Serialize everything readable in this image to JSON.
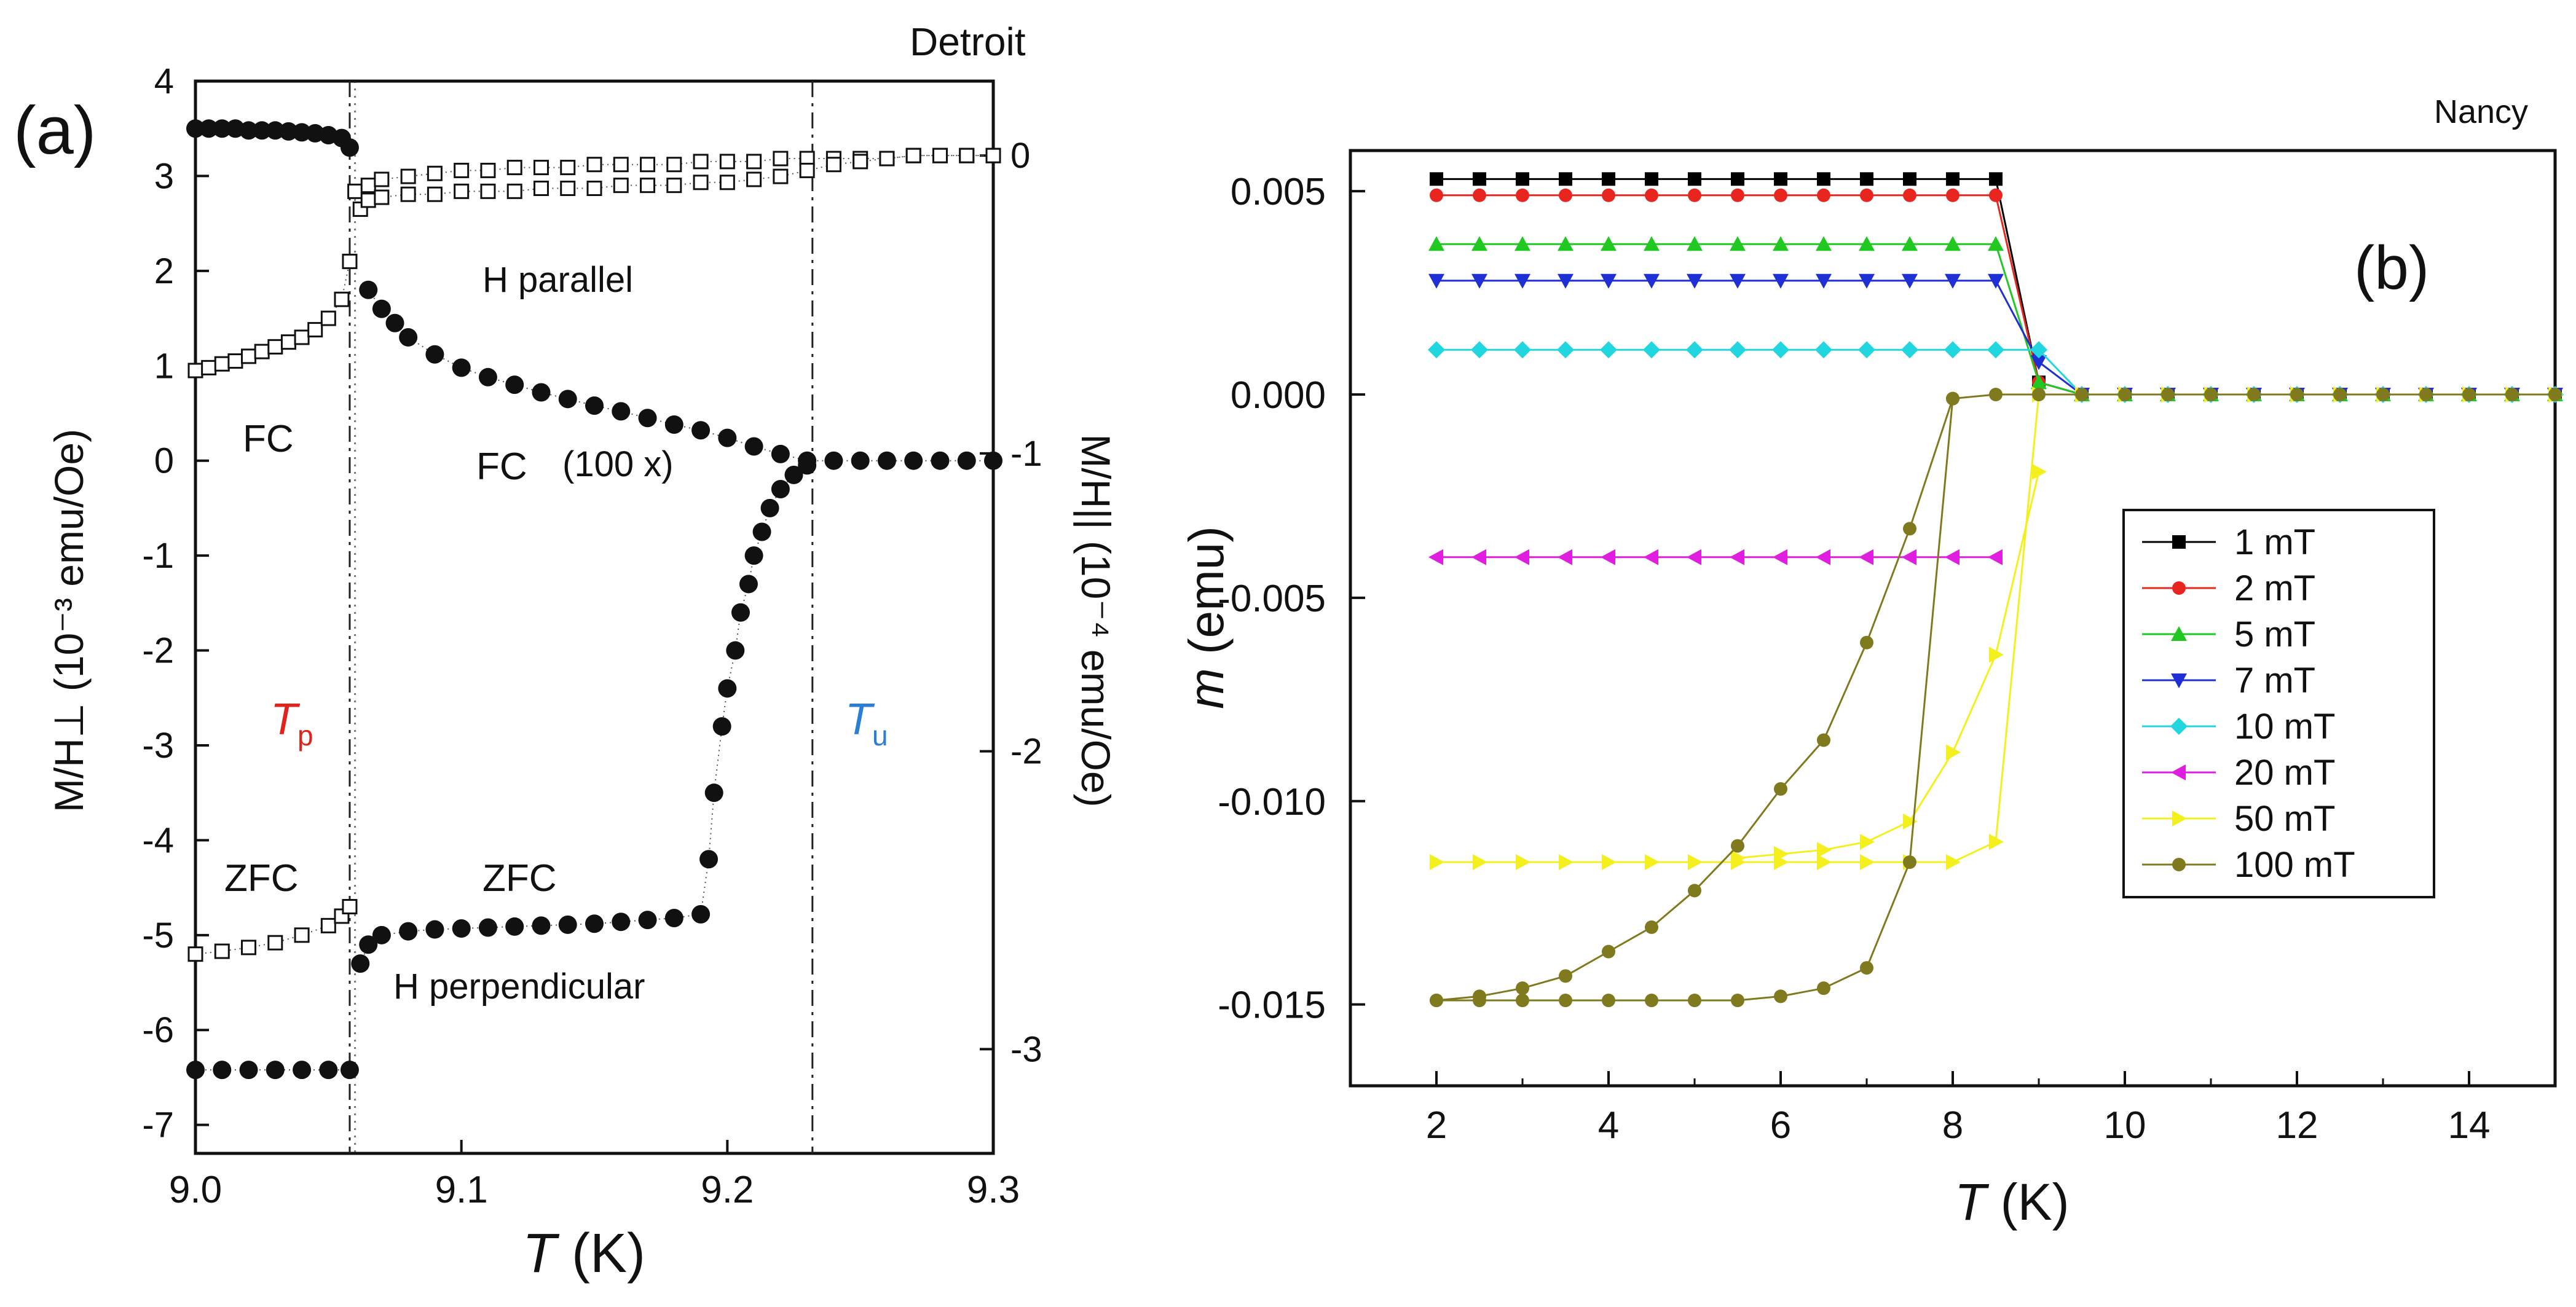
{
  "chart_data": [
    {
      "type": "scatter",
      "panel_label": "(a)",
      "source": "Detroit",
      "xlabel": {
        "sym": "T",
        "unit": " (K)"
      },
      "ylabel_left": "M/H⊥ (10⁻³ emu/Oe)",
      "ylabel_right": "M/H|| (10⁻⁴ emu/Oe)",
      "xlim": [
        9.0,
        9.3
      ],
      "ylim_left": [
        -7.3,
        4.0
      ],
      "ylim_right": [
        -3.35,
        0.25
      ],
      "xticks": [
        "9.0",
        "9.1",
        "9.2",
        "9.3"
      ],
      "xtick_values": [
        9.0,
        9.1,
        9.2,
        9.3
      ],
      "yticks_left": [
        4,
        3,
        2,
        1,
        0,
        -1,
        -2,
        -3,
        -4,
        -5,
        -6,
        -7
      ],
      "yticks_right": [
        0,
        -1,
        -2,
        -3
      ],
      "vlines": [
        9.058,
        9.232,
        9.06
      ],
      "annotations": {
        "h_parallel": "H parallel",
        "h_perp": "H perpendicular",
        "fc_left": "FC",
        "fc_mid": "FC",
        "fc_scale": "(100 x)",
        "zfc_left": "ZFC",
        "zfc_mid": "ZFC",
        "tp_sym": "T",
        "tp_sub": "p",
        "tu_sym": "T",
        "tu_sub": "u"
      },
      "colors": {
        "tp": "#e0241b",
        "tu": "#2a7fd4"
      },
      "series": [
        {
          "marker": "open-square",
          "axis": "left",
          "x": [
            9.0,
            9.005,
            9.01,
            9.015,
            9.02,
            9.025,
            9.03,
            9.035,
            9.04,
            9.045,
            9.05,
            9.055,
            9.058
          ],
          "y": [
            0.95,
            0.98,
            1.02,
            1.05,
            1.1,
            1.15,
            1.2,
            1.25,
            1.3,
            1.38,
            1.5,
            1.7,
            2.1
          ]
        },
        {
          "marker": "open-square",
          "axis": "left",
          "x": [
            9.0,
            9.01,
            9.02,
            9.03,
            9.04,
            9.05,
            9.055,
            9.058
          ],
          "y": [
            -5.2,
            -5.17,
            -5.13,
            -5.08,
            -5.0,
            -4.9,
            -4.8,
            -4.7
          ]
        },
        {
          "marker": "open-square",
          "axis": "right",
          "x": [
            9.06,
            9.065,
            9.07,
            9.08,
            9.09,
            9.1,
            9.11,
            9.12,
            9.13,
            9.14,
            9.15,
            9.16,
            9.17,
            9.18,
            9.19,
            9.2,
            9.21,
            9.22,
            9.23,
            9.24,
            9.25,
            9.26,
            9.27,
            9.28,
            9.29,
            9.3
          ],
          "y": [
            -0.12,
            -0.1,
            -0.08,
            -0.07,
            -0.06,
            -0.05,
            -0.05,
            -0.04,
            -0.04,
            -0.04,
            -0.03,
            -0.03,
            -0.03,
            -0.03,
            -0.02,
            -0.02,
            -0.02,
            -0.01,
            -0.01,
            -0.01,
            -0.01,
            -0.01,
            0,
            0,
            0,
            0
          ]
        },
        {
          "marker": "open-square",
          "axis": "right",
          "x": [
            9.062,
            9.065,
            9.07,
            9.08,
            9.09,
            9.1,
            9.11,
            9.12,
            9.13,
            9.14,
            9.15,
            9.16,
            9.17,
            9.18,
            9.19,
            9.2,
            9.21,
            9.22,
            9.23,
            9.24,
            9.25,
            9.26,
            9.27,
            9.28,
            9.29,
            9.3
          ],
          "y": [
            -0.18,
            -0.15,
            -0.14,
            -0.13,
            -0.13,
            -0.12,
            -0.12,
            -0.12,
            -0.11,
            -0.11,
            -0.11,
            -0.1,
            -0.1,
            -0.1,
            -0.09,
            -0.09,
            -0.08,
            -0.07,
            -0.05,
            -0.03,
            -0.02,
            -0.01,
            0,
            0,
            0,
            0
          ]
        },
        {
          "marker": "filled-circle",
          "axis": "left",
          "x": [
            9.0,
            9.005,
            9.01,
            9.015,
            9.02,
            9.025,
            9.03,
            9.035,
            9.04,
            9.045,
            9.05,
            9.055,
            9.058
          ],
          "y": [
            3.5,
            3.5,
            3.5,
            3.5,
            3.48,
            3.48,
            3.48,
            3.47,
            3.46,
            3.45,
            3.43,
            3.4,
            3.3
          ]
        },
        {
          "marker": "filled-circle",
          "axis": "left",
          "x": [
            9.0,
            9.01,
            9.02,
            9.03,
            9.04,
            9.05,
            9.058
          ],
          "y": [
            -6.42,
            -6.42,
            -6.42,
            -6.42,
            -6.42,
            -6.42,
            -6.42
          ]
        },
        {
          "marker": "filled-circle",
          "axis": "left",
          "x": [
            9.065,
            9.07,
            9.075,
            9.08,
            9.09,
            9.1,
            9.11,
            9.12,
            9.13,
            9.14,
            9.15,
            9.16,
            9.17,
            9.18,
            9.19,
            9.2,
            9.21,
            9.22,
            9.23,
            9.24,
            9.25,
            9.26,
            9.27,
            9.28,
            9.29,
            9.3
          ],
          "y": [
            1.8,
            1.6,
            1.45,
            1.3,
            1.12,
            0.98,
            0.88,
            0.8,
            0.72,
            0.65,
            0.58,
            0.52,
            0.45,
            0.38,
            0.32,
            0.24,
            0.15,
            0.07,
            0.0,
            0.0,
            0.0,
            0.0,
            0.0,
            0.0,
            0.0,
            0.0
          ]
        },
        {
          "marker": "filled-circle",
          "axis": "left",
          "x": [
            9.062,
            9.065,
            9.07,
            9.08,
            9.09,
            9.1,
            9.11,
            9.12,
            9.13,
            9.14,
            9.15,
            9.16,
            9.17,
            9.18,
            9.19,
            9.193,
            9.195,
            9.198,
            9.2,
            9.203,
            9.205,
            9.208,
            9.21,
            9.213,
            9.216,
            9.22,
            9.225,
            9.23
          ],
          "y": [
            -5.3,
            -5.1,
            -5.0,
            -4.96,
            -4.94,
            -4.93,
            -4.92,
            -4.91,
            -4.9,
            -4.89,
            -4.88,
            -4.86,
            -4.84,
            -4.82,
            -4.78,
            -4.2,
            -3.5,
            -2.8,
            -2.4,
            -2.0,
            -1.6,
            -1.3,
            -1.0,
            -0.75,
            -0.5,
            -0.3,
            -0.15,
            -0.05
          ]
        }
      ]
    },
    {
      "type": "line",
      "panel_label": "(b)",
      "source": "Nancy",
      "xlabel": {
        "sym": "T",
        "unit": " (K)"
      },
      "ylabel": {
        "sym": "m",
        "unit": " (emu)"
      },
      "xlim": [
        1,
        15
      ],
      "ylim": [
        -0.017,
        0.006
      ],
      "xticks": [
        2,
        4,
        6,
        8,
        10,
        12,
        14
      ],
      "yticks": [
        "0.005",
        "0.000",
        "-0.005",
        "-0.010",
        "-0.015"
      ],
      "ytick_values": [
        0.005,
        0.0,
        -0.005,
        -0.01,
        -0.015
      ],
      "series": [
        {
          "name": "1 mT",
          "color": "#000000",
          "marker": "square",
          "x": [
            2,
            2.5,
            3,
            3.5,
            4,
            4.5,
            5,
            5.5,
            6,
            6.5,
            7,
            7.5,
            8,
            8.5,
            9,
            9.5,
            10,
            10.5,
            11,
            11.5,
            12,
            12.5,
            13,
            13.5,
            14,
            14.5,
            15
          ],
          "y": [
            0.0053,
            0.0053,
            0.0053,
            0.0053,
            0.0053,
            0.0053,
            0.0053,
            0.0053,
            0.0053,
            0.0053,
            0.0053,
            0.0053,
            0.0053,
            0.0053,
            0.0003,
            0,
            0,
            0,
            0,
            0,
            0,
            0,
            0,
            0,
            0,
            0,
            0
          ]
        },
        {
          "name": "2 mT",
          "color": "#e8261f",
          "marker": "circle",
          "x": [
            2,
            2.5,
            3,
            3.5,
            4,
            4.5,
            5,
            5.5,
            6,
            6.5,
            7,
            7.5,
            8,
            8.5,
            9,
            9.5,
            10,
            10.5,
            11,
            11.5,
            12,
            12.5,
            13,
            13.5,
            14,
            14.5,
            15
          ],
          "y": [
            0.0049,
            0.0049,
            0.0049,
            0.0049,
            0.0049,
            0.0049,
            0.0049,
            0.0049,
            0.0049,
            0.0049,
            0.0049,
            0.0049,
            0.0049,
            0.0049,
            0.0003,
            0,
            0,
            0,
            0,
            0,
            0,
            0,
            0,
            0,
            0,
            0,
            0
          ]
        },
        {
          "name": "5 mT",
          "color": "#22c822",
          "marker": "triangle-up",
          "x": [
            2,
            2.5,
            3,
            3.5,
            4,
            4.5,
            5,
            5.5,
            6,
            6.5,
            7,
            7.5,
            8,
            8.5,
            9,
            9.5,
            10,
            10.5,
            11,
            11.5,
            12,
            12.5,
            13,
            13.5,
            14,
            14.5,
            15
          ],
          "y": [
            0.0037,
            0.0037,
            0.0037,
            0.0037,
            0.0037,
            0.0037,
            0.0037,
            0.0037,
            0.0037,
            0.0037,
            0.0037,
            0.0037,
            0.0037,
            0.0037,
            0.0003,
            0,
            0,
            0,
            0,
            0,
            0,
            0,
            0,
            0,
            0,
            0,
            0
          ]
        },
        {
          "name": "7 mT",
          "color": "#1f2fd6",
          "marker": "triangle-down",
          "x": [
            2,
            2.5,
            3,
            3.5,
            4,
            4.5,
            5,
            5.5,
            6,
            6.5,
            7,
            7.5,
            8,
            8.5,
            9,
            9.5,
            10,
            10.5,
            11,
            11.5,
            12,
            12.5,
            13,
            13.5,
            14,
            14.5,
            15
          ],
          "y": [
            0.0028,
            0.0028,
            0.0028,
            0.0028,
            0.0028,
            0.0028,
            0.0028,
            0.0028,
            0.0028,
            0.0028,
            0.0028,
            0.0028,
            0.0028,
            0.0028,
            0.0008,
            0,
            0,
            0,
            0,
            0,
            0,
            0,
            0,
            0,
            0,
            0,
            0
          ]
        },
        {
          "name": "10 mT",
          "color": "#22d6e0",
          "marker": "diamond",
          "x": [
            2,
            2.5,
            3,
            3.5,
            4,
            4.5,
            5,
            5.5,
            6,
            6.5,
            7,
            7.5,
            8,
            8.5,
            9,
            9.5,
            10,
            10.5,
            11,
            11.5,
            12,
            12.5,
            13,
            13.5,
            14,
            14.5,
            15
          ],
          "y": [
            0.0011,
            0.0011,
            0.0011,
            0.0011,
            0.0011,
            0.0011,
            0.0011,
            0.0011,
            0.0011,
            0.0011,
            0.0011,
            0.0011,
            0.0011,
            0.0011,
            0.0011,
            0,
            0,
            0,
            0,
            0,
            0,
            0,
            0,
            0,
            0,
            0,
            0
          ]
        },
        {
          "name": "20 mT",
          "color": "#e01ee0",
          "marker": "triangle-left",
          "x": [
            2,
            2.5,
            3,
            3.5,
            4,
            4.5,
            5,
            5.5,
            6,
            6.5,
            7,
            7.5,
            8,
            8.5
          ],
          "y": [
            -0.004,
            -0.004,
            -0.004,
            -0.004,
            -0.004,
            -0.004,
            -0.004,
            -0.004,
            -0.004,
            -0.004,
            -0.004,
            -0.004,
            -0.004,
            -0.004
          ]
        },
        {
          "name": "50 mT",
          "color": "#f4f01e",
          "marker": "triangle-right",
          "x": [
            2,
            2.5,
            3,
            3.5,
            4,
            4.5,
            5,
            5.5,
            6,
            6.5,
            7,
            7.5,
            8,
            8.5,
            9,
            9.5,
            10,
            10.5,
            11,
            11.5,
            12,
            12.5,
            13,
            13.5,
            14,
            14.5,
            15
          ],
          "y": [
            -0.0115,
            -0.0115,
            -0.0115,
            -0.0115,
            -0.0115,
            -0.0115,
            -0.0115,
            -0.0115,
            -0.0115,
            -0.0115,
            -0.0115,
            -0.0115,
            -0.0115,
            -0.011,
            0,
            0,
            0,
            0,
            0,
            0,
            0,
            0,
            0,
            0,
            0,
            0,
            0
          ]
        },
        {
          "name": "50 mT",
          "color": "#f4f01e",
          "marker": "triangle-right",
          "hide_legend": true,
          "x": [
            5.5,
            6,
            6.5,
            7,
            7.5,
            8,
            8.5,
            9
          ],
          "y": [
            -0.0114,
            -0.0113,
            -0.0112,
            -0.011,
            -0.0105,
            -0.0088,
            -0.0064,
            -0.0019
          ]
        },
        {
          "name": "100 mT",
          "color": "#807a1e",
          "marker": "circle",
          "x": [
            2,
            2.5,
            3,
            3.5,
            4,
            4.5,
            5,
            5.5,
            6,
            6.5,
            7,
            7.5,
            8,
            8.5,
            9,
            9.5,
            10,
            10.5,
            11,
            11.5,
            12,
            12.5,
            13,
            13.5,
            14,
            14.5,
            15
          ],
          "y": [
            -0.0149,
            -0.0148,
            -0.0146,
            -0.0143,
            -0.0137,
            -0.0131,
            -0.0122,
            -0.0111,
            -0.0097,
            -0.0085,
            -0.0061,
            -0.0033,
            -0.0001,
            0,
            0,
            0,
            0,
            0,
            0,
            0,
            0,
            0,
            0,
            0,
            0,
            0,
            0
          ]
        },
        {
          "name": "100 mT",
          "color": "#807a1e",
          "marker": "circle",
          "hide_legend": true,
          "x": [
            2,
            2.5,
            3,
            3.5,
            4,
            4.5,
            5,
            5.5,
            6,
            6.5,
            7,
            7.5,
            8
          ],
          "y": [
            -0.0149,
            -0.0149,
            -0.0149,
            -0.0149,
            -0.0149,
            -0.0149,
            -0.0149,
            -0.0149,
            -0.0148,
            -0.0146,
            -0.0141,
            -0.0115,
            -0.0001
          ]
        }
      ]
    }
  ]
}
